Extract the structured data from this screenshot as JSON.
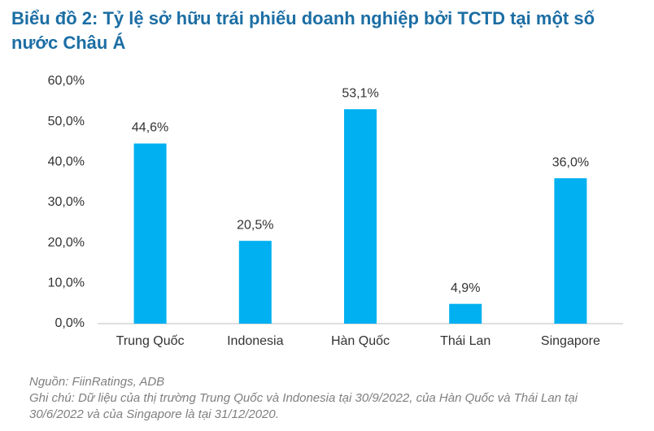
{
  "chart_data": {
    "type": "bar",
    "title": "Biểu đồ 2: Tỷ lệ sở hữu trái phiếu doanh nghiệp bởi TCTD tại một số nước Châu Á",
    "categories": [
      "Trung Quốc",
      "Indonesia",
      "Hàn Quốc",
      "Thái Lan",
      "Singapore"
    ],
    "values": [
      44.6,
      20.5,
      53.1,
      4.9,
      36.0
    ],
    "value_labels": [
      "44,6%",
      "20,5%",
      "53,1%",
      "4,9%",
      "36,0%"
    ],
    "color": "#00b0f0",
    "ylim": [
      0,
      60
    ],
    "yticks": [
      {
        "value": 0,
        "label": "0,0%"
      },
      {
        "value": 10,
        "label": "10,0%"
      },
      {
        "value": 20,
        "label": "20,0%"
      },
      {
        "value": 30,
        "label": "30,0%"
      },
      {
        "value": 40,
        "label": "40,0%"
      },
      {
        "value": 50,
        "label": "50,0%"
      },
      {
        "value": 60,
        "label": "60,0%"
      }
    ],
    "grid": false,
    "source": "Nguồn: FiinRatings, ADB",
    "note": "Ghi chú: Dữ liệu của thị trường Trung Quốc và Indonesia tại 30/9/2022, của Hàn Quốc và Thái Lan tại 30/6/2022 và của Singapore là tại 31/12/2020."
  }
}
